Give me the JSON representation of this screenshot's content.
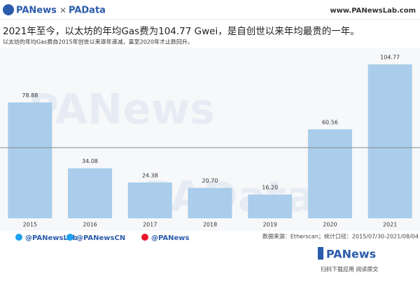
{
  "header": {
    "brand_left": "PANews",
    "brand_sep": "×",
    "brand_right": "PAData",
    "website": "www.PANewsLab.com"
  },
  "chart_data": {
    "type": "bar",
    "title": "2021年至今，以太坊的年均Gas费为104.77 Gwei，是自创世以来年均最贵的一年。",
    "subtitle": "以太坊的年均Gas费自2015年创世以来逐年递减，直至2020年才止跌回升。",
    "categories": [
      "2015",
      "2016",
      "2017",
      "2018",
      "2019",
      "2020",
      "2021"
    ],
    "values": [
      78.88,
      34.08,
      24.38,
      20.7,
      16.2,
      60.56,
      104.77
    ],
    "value_labels": [
      "78.88",
      "34.08",
      "24.38",
      "20.70",
      "16.20",
      "60.56",
      "104.77"
    ],
    "color": "#a9cdea",
    "watermarks": [
      "PANews",
      "PAData"
    ]
  },
  "footer": {
    "social": [
      "@PANewsLab",
      "@PANewsCN",
      "@PANews"
    ],
    "source": "数据来源：Etherscan；统计口径：2015/07/30-2021/08/04",
    "logo": "PANews",
    "cta": "扫码下载应用  阅读原文"
  }
}
